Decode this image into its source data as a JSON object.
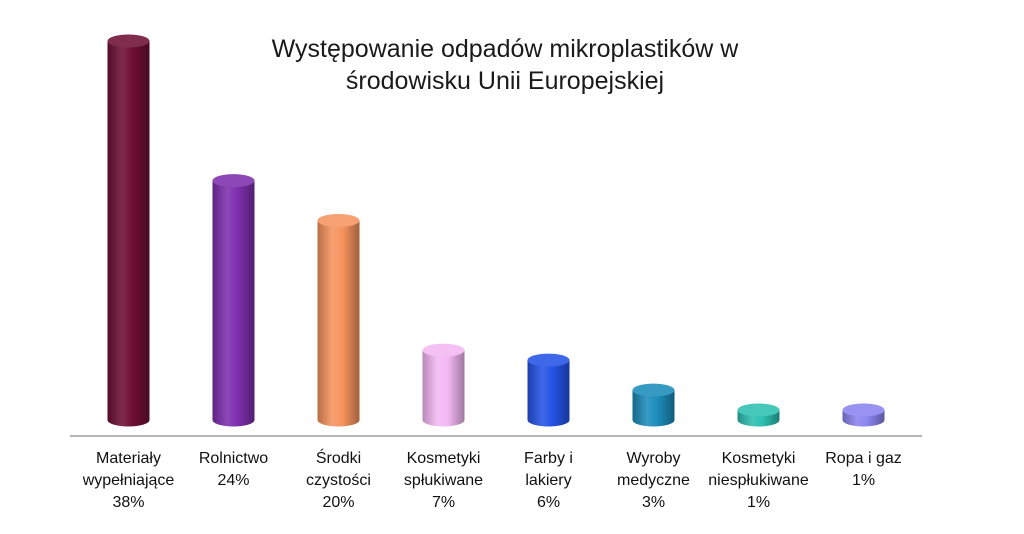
{
  "chart_data": {
    "type": "bar",
    "title_lines": [
      "Występowanie odpadów mikroplastików w",
      "środowisku Unii Europejskiej"
    ],
    "categories": [
      {
        "label": [
          "Materiały",
          "wypełniające",
          "38%"
        ],
        "value": 38,
        "color": "#6e0f35"
      },
      {
        "label": [
          "Rolnictwo",
          "24%"
        ],
        "value": 24,
        "color": "#7e2fae"
      },
      {
        "label": [
          "Środki",
          "czystości",
          "20%"
        ],
        "value": 20,
        "color": "#f6935e"
      },
      {
        "label": [
          "Kosmetyki",
          "spłukiwane",
          "7%"
        ],
        "value": 7,
        "color": "#f4b8f4"
      },
      {
        "label": [
          "Farby i",
          "lakiery",
          "6%"
        ],
        "value": 6,
        "color": "#2453e6"
      },
      {
        "label": [
          "Wyroby",
          "medyczne",
          "3%"
        ],
        "value": 3,
        "color": "#1c8cbb"
      },
      {
        "label": [
          "Kosmetyki",
          "niespłukiwane",
          "1%"
        ],
        "value": 1,
        "color": "#2cbfb0"
      },
      {
        "label": [
          "Ropa i gaz",
          "1%"
        ],
        "value": 1,
        "color": "#8a84ee"
      }
    ],
    "xlabel": "",
    "ylabel": "",
    "ylim": [
      0,
      38
    ],
    "grid": false,
    "legend": "none"
  }
}
